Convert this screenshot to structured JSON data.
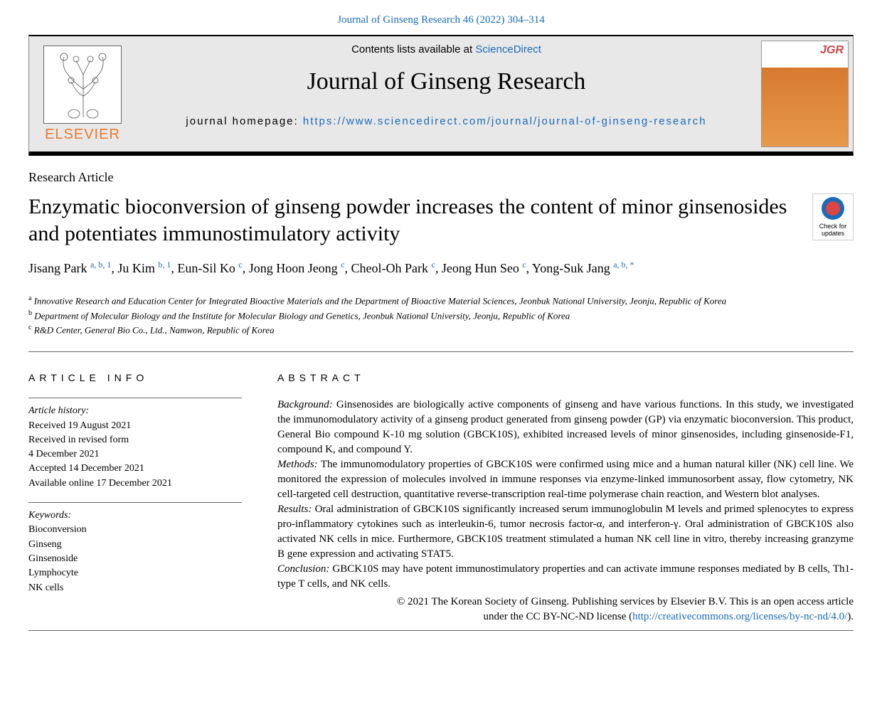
{
  "citation": "Journal of Ginseng Research 46 (2022) 304–314",
  "header": {
    "contents_prefix": "Contents lists available at ",
    "contents_link": "ScienceDirect",
    "journal_name": "Journal of Ginseng Research",
    "homepage_prefix": "journal homepage: ",
    "homepage_url": "https://www.sciencedirect.com/journal/journal-of-ginseng-research",
    "elsevier": "ELSEVIER",
    "cover_label": "JGR"
  },
  "article_type": "Research Article",
  "title": "Enzymatic bioconversion of ginseng powder increases the content of minor ginsenosides and potentiates immunostimulatory activity",
  "check_updates": "Check for updates",
  "authors": [
    {
      "name": "Jisang Park",
      "marks": "a, b, 1"
    },
    {
      "name": "Ju Kim",
      "marks": "b, 1"
    },
    {
      "name": "Eun-Sil Ko",
      "marks": "c"
    },
    {
      "name": "Jong Hoon Jeong",
      "marks": "c"
    },
    {
      "name": "Cheol-Oh Park",
      "marks": "c"
    },
    {
      "name": "Jeong Hun Seo",
      "marks": "c"
    },
    {
      "name": "Yong-Suk Jang",
      "marks": "a, b, *"
    }
  ],
  "affiliations": [
    {
      "mark": "a",
      "text": "Innovative Research and Education Center for Integrated Bioactive Materials and the Department of Bioactive Material Sciences, Jeonbuk National University, Jeonju, Republic of Korea"
    },
    {
      "mark": "b",
      "text": "Department of Molecular Biology and the Institute for Molecular Biology and Genetics, Jeonbuk National University, Jeonju, Republic of Korea"
    },
    {
      "mark": "c",
      "text": "R&D Center, General Bio Co., Ltd., Namwon, Republic of Korea"
    }
  ],
  "info_heading": "ARTICLE INFO",
  "abstract_heading": "ABSTRACT",
  "history": {
    "label": "Article history:",
    "received": "Received 19 August 2021",
    "revised": "Received in revised form",
    "revised_date": "4 December 2021",
    "accepted": "Accepted 14 December 2021",
    "online": "Available online 17 December 2021"
  },
  "keywords": {
    "label": "Keywords:",
    "items": [
      "Bioconversion",
      "Ginseng",
      "Ginsenoside",
      "Lymphocyte",
      "NK cells"
    ]
  },
  "abstract": {
    "background_label": "Background:",
    "background": "Ginsenosides are biologically active components of ginseng and have various functions. In this study, we investigated the immunomodulatory activity of a ginseng product generated from ginseng powder (GP) via enzymatic bioconversion. This product, General Bio compound K-10 mg solution (GBCK10S), exhibited increased levels of minor ginsenosides, including ginsenoside-F1, compound K, and compound Y.",
    "methods_label": "Methods:",
    "methods": "The immunomodulatory properties of GBCK10S were confirmed using mice and a human natural killer (NK) cell line. We monitored the expression of molecules involved in immune responses via enzyme-linked immunosorbent assay, flow cytometry, NK cell-targeted cell destruction, quantitative reverse-transcription real-time polymerase chain reaction, and Western blot analyses.",
    "results_label": "Results:",
    "results": "Oral administration of GBCK10S significantly increased serum immunoglobulin M levels and primed splenocytes to express pro-inflammatory cytokines such as interleukin-6, tumor necrosis factor-α, and interferon-γ. Oral administration of GBCK10S also activated NK cells in mice. Furthermore, GBCK10S treatment stimulated a human NK cell line in vitro, thereby increasing granzyme B gene expression and activating STAT5.",
    "conclusion_label": "Conclusion:",
    "conclusion": "GBCK10S may have potent immunostimulatory properties and can activate immune responses mediated by B cells, Th1-type T cells, and NK cells."
  },
  "copyright": {
    "line1": "© 2021 The Korean Society of Ginseng. Publishing services by Elsevier B.V. This is an open access article",
    "line2_prefix": "under the CC BY-NC-ND license (",
    "license_url": "http://creativecommons.org/licenses/by-nc-nd/4.0/",
    "line2_suffix": ")."
  },
  "colors": {
    "link": "#1a6bb8",
    "elsevier_orange": "#e8792e"
  }
}
